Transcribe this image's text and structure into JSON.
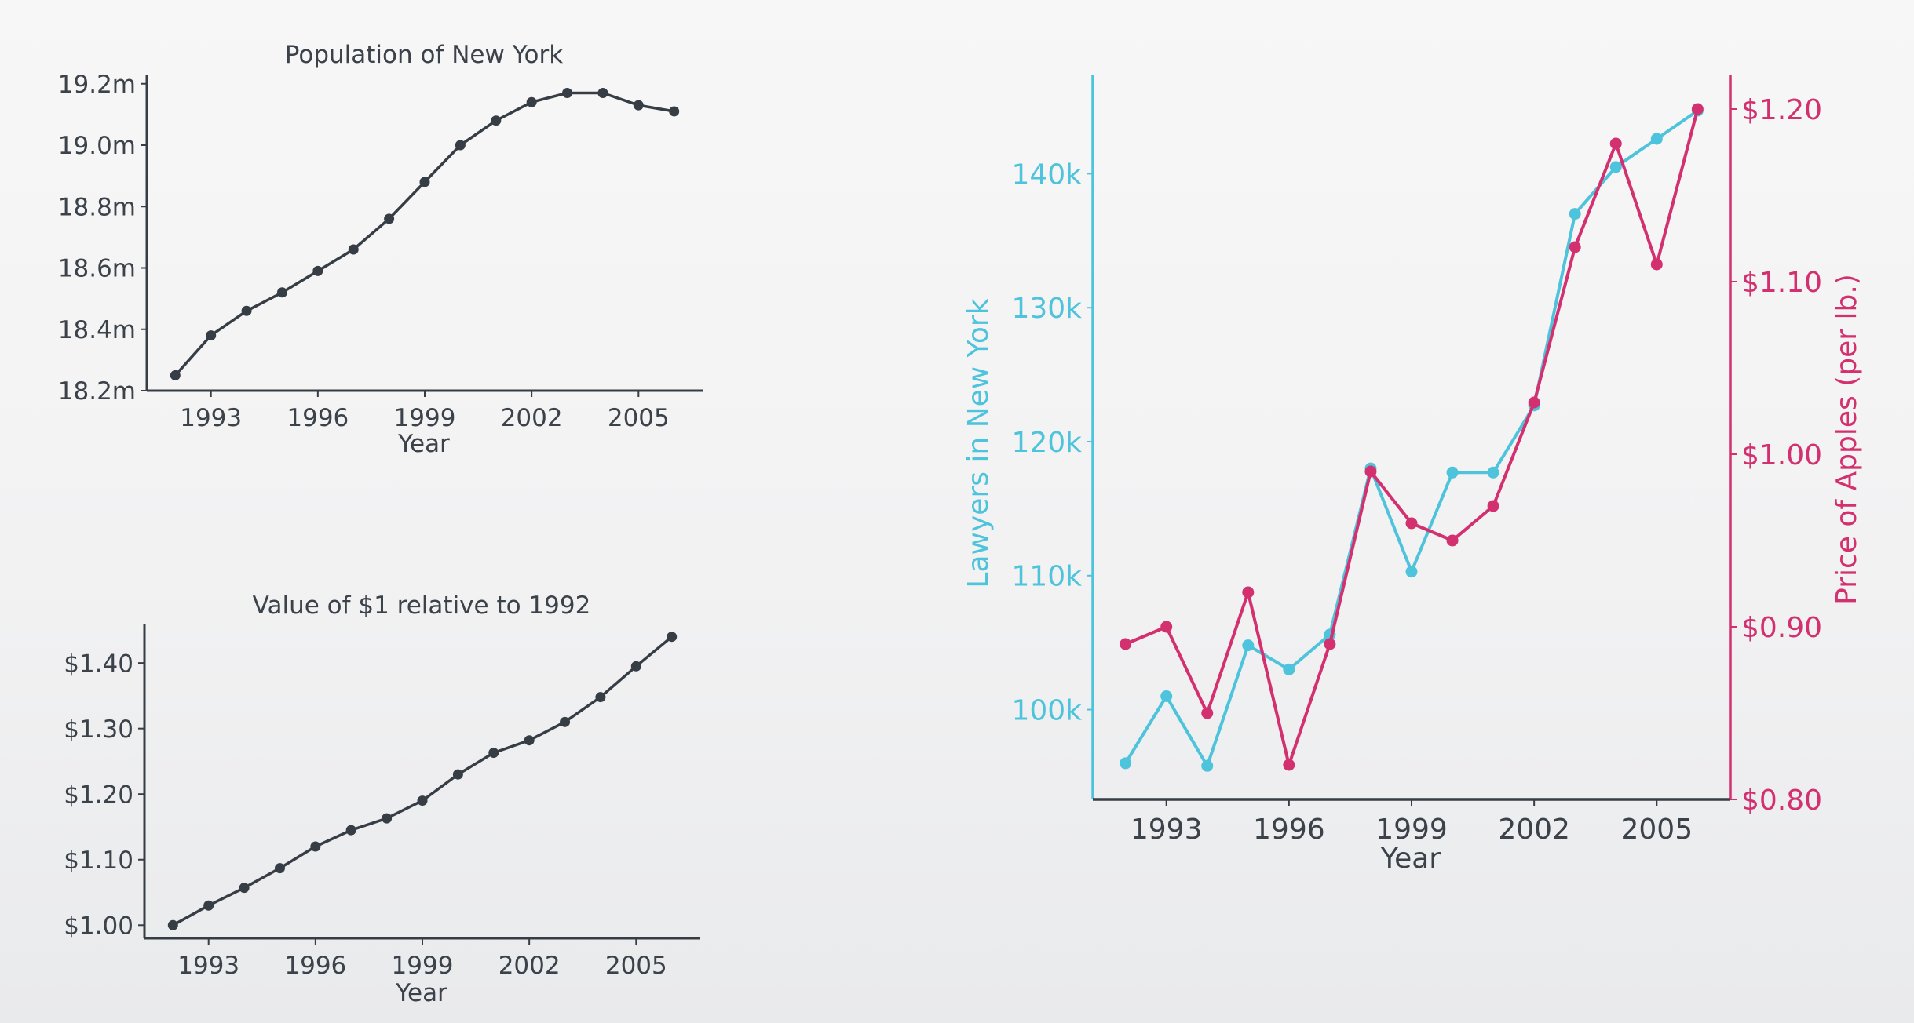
{
  "chart_data": [
    {
      "type": "line",
      "title": "Population of New York",
      "xlabel": "Year",
      "ylabel": "",
      "x": [
        1992,
        1993,
        1994,
        1995,
        1996,
        1997,
        1998,
        1999,
        2000,
        2001,
        2002,
        2003,
        2004,
        2005,
        2006
      ],
      "series": [
        {
          "values": [
            18.25,
            18.38,
            18.46,
            18.52,
            18.59,
            18.66,
            18.76,
            18.88,
            19.0,
            19.08,
            19.14,
            19.17,
            19.17,
            19.13,
            19.11
          ],
          "color": "#363d45"
        }
      ],
      "xlim": [
        1991.2,
        2006.8
      ],
      "ylim": [
        18.2,
        19.23
      ],
      "xticks": [
        1993,
        1996,
        1999,
        2002,
        2005
      ],
      "xtick_labels": [
        "1993",
        "1996",
        "1999",
        "2002",
        "2005"
      ],
      "yticks": [
        18.2,
        18.4,
        18.6,
        18.8,
        19.0,
        19.2
      ],
      "ytick_labels": [
        "18.2m",
        "18.4m",
        "18.6m",
        "18.8m",
        "19.0m",
        "19.2m"
      ],
      "grid": false
    },
    {
      "type": "line",
      "title": "Value of $1 relative to 1992",
      "xlabel": "Year",
      "ylabel": "",
      "x": [
        1992,
        1993,
        1994,
        1995,
        1996,
        1997,
        1998,
        1999,
        2000,
        2001,
        2002,
        2003,
        2004,
        2005,
        2006
      ],
      "series": [
        {
          "values": [
            1.0,
            1.03,
            1.057,
            1.087,
            1.12,
            1.145,
            1.163,
            1.19,
            1.23,
            1.263,
            1.282,
            1.31,
            1.348,
            1.395,
            1.44
          ],
          "color": "#363d45"
        }
      ],
      "xlim": [
        1991.2,
        2006.8
      ],
      "ylim": [
        0.98,
        1.46
      ],
      "xticks": [
        1993,
        1996,
        1999,
        2002,
        2005
      ],
      "xtick_labels": [
        "1993",
        "1996",
        "1999",
        "2002",
        "2005"
      ],
      "yticks": [
        1.0,
        1.1,
        1.2,
        1.3,
        1.4
      ],
      "ytick_labels": [
        "$1.00",
        "$1.10",
        "$1.20",
        "$1.30",
        "$1.40"
      ],
      "grid": false
    },
    {
      "type": "line",
      "title": "",
      "xlabel": "Year",
      "ylabel": "Lawyers in New York",
      "y2label": "Price of Apples (per lb.)",
      "x": [
        1992,
        1993,
        1994,
        1995,
        1996,
        1997,
        1998,
        1999,
        2000,
        2001,
        2002,
        2003,
        2004,
        2005,
        2006
      ],
      "series": [
        {
          "name": "Lawyers in New York",
          "axis": "left",
          "color": "#4ec3dc",
          "values": [
            96000,
            101000,
            95800,
            104800,
            103000,
            105600,
            118000,
            110300,
            117700,
            117700,
            122700,
            137000,
            140500,
            142600,
            144700
          ]
        },
        {
          "name": "Price of Apples (per lb.)",
          "axis": "right",
          "color": "#d3306f",
          "values": [
            0.89,
            0.9,
            0.85,
            0.92,
            0.82,
            0.89,
            0.99,
            0.96,
            0.95,
            0.97,
            1.03,
            1.12,
            1.18,
            1.11,
            1.2
          ]
        }
      ],
      "xlim": [
        1991.2,
        2006.8
      ],
      "ylim": [
        93300,
        147400
      ],
      "y2lim": [
        0.8,
        1.22
      ],
      "xticks": [
        1993,
        1996,
        1999,
        2002,
        2005
      ],
      "xtick_labels": [
        "1993",
        "1996",
        "1999",
        "2002",
        "2005"
      ],
      "yticks": [
        100000,
        110000,
        120000,
        130000,
        140000
      ],
      "ytick_labels": [
        "100k",
        "110k",
        "120k",
        "130k",
        "140k"
      ],
      "y2ticks": [
        0.8,
        0.9,
        1.0,
        1.1,
        1.2
      ],
      "y2tick_labels": [
        "$0.80",
        "$0.90",
        "$1.00",
        "$1.10",
        "$1.20"
      ],
      "grid": false
    }
  ]
}
